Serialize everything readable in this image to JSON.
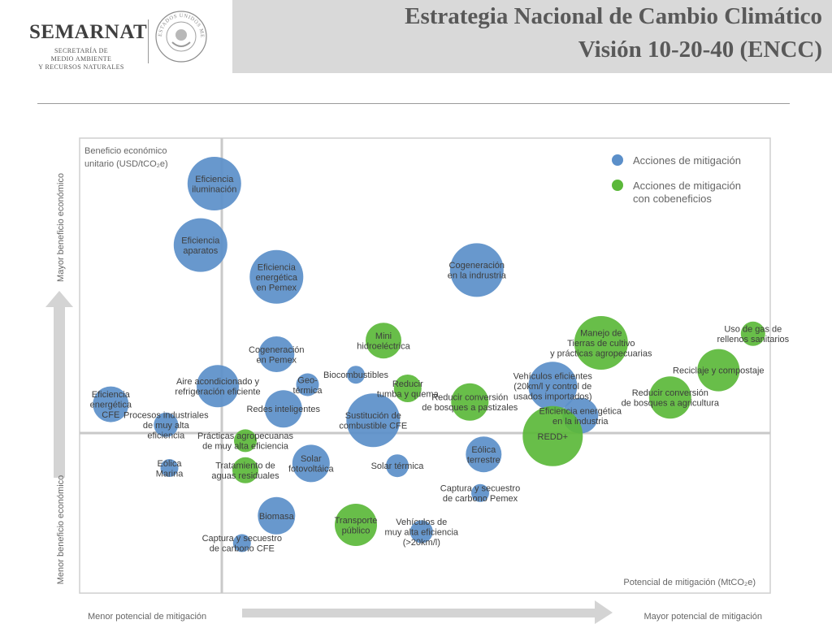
{
  "header": {
    "title_line1": "Estrategia Nacional de Cambio Climático",
    "title_line2": "Visión 10-20-40 (ENCC)",
    "logo_name": "SEMARNAT",
    "logo_sub1": "SECRETARÍA DE",
    "logo_sub2": "MEDIO AMBIENTE",
    "logo_sub3": "Y RECURSOS NATURALES",
    "seal_text": "ESTADOS UNIDOS MEXICANOS"
  },
  "chart_data": {
    "type": "bubble",
    "x_scale": [
      0,
      100
    ],
    "y_scale": [
      0,
      100
    ],
    "y_axis_label_top": [
      "Beneficio económico",
      "unitario (USD/tCO₂e)"
    ],
    "x_axis_label": "Potencial de mitigación (MtCO₂e)",
    "outer_y_top": "Mayor beneficio económico",
    "outer_y_bottom": "Menor beneficio económico",
    "outer_x_left": "Menor potencial de mitigación",
    "outer_x_right": "Mayor potencial de mitigación",
    "legend": [
      {
        "name": "Acciones de mitigación",
        "lines": [
          "Acciones de mitigación"
        ],
        "color": "#5b8fc9"
      },
      {
        "name": "Acciones de mitigación con cobeneficios",
        "lines": [
          "Acciones de mitigación",
          "con cobeneficios"
        ],
        "color": "#5bb83a"
      }
    ],
    "colors": {
      "mitigation": "#5b8fc9",
      "cobenefit": "#5bb83a",
      "frame": "#cfcfcf",
      "arrow": "#d4d4d4"
    },
    "points": [
      {
        "lines": [
          "Eficiencia",
          "iluminación"
        ],
        "x": 19.5,
        "y": 90,
        "r": 33,
        "group": "mitigation"
      },
      {
        "lines": [
          "Eficiencia",
          "aparatos"
        ],
        "x": 17.5,
        "y": 76.5,
        "r": 33,
        "group": "mitigation"
      },
      {
        "lines": [
          "Eficiencia",
          "energética",
          "en Pemex"
        ],
        "x": 28.5,
        "y": 69.5,
        "r": 33,
        "group": "mitigation"
      },
      {
        "lines": [
          "Cogeneración",
          "en la indrustria"
        ],
        "x": 57.5,
        "y": 71,
        "r": 33,
        "group": "mitigation"
      },
      {
        "lines": [
          "Cogeneración",
          "en Pemex"
        ],
        "x": 28.5,
        "y": 52.5,
        "r": 22,
        "group": "mitigation"
      },
      {
        "lines": [
          "Aire acondicionado y",
          "refrigeración eficiente"
        ],
        "x": 20,
        "y": 45.5,
        "r": 26,
        "group": "mitigation"
      },
      {
        "lines": [
          "Geo-",
          "térmica"
        ],
        "x": 33,
        "y": 45.8,
        "r": 14,
        "group": "mitigation"
      },
      {
        "lines": [
          "Biocombustibles"
        ],
        "x": 40,
        "y": 48,
        "r": 11,
        "group": "mitigation"
      },
      {
        "lines": [
          "Redes inteligentes"
        ],
        "x": 29.5,
        "y": 40.5,
        "r": 23,
        "group": "mitigation"
      },
      {
        "lines": [
          "Eficiencia",
          "energética",
          "CFE"
        ],
        "x": 4.5,
        "y": 41.5,
        "r": 22,
        "group": "mitigation"
      },
      {
        "lines": [
          "Procesos industriales",
          "de muy alta",
          "eficiencia"
        ],
        "x": 12.5,
        "y": 37,
        "r": 15,
        "group": "mitigation"
      },
      {
        "lines": [
          "Sustitución de",
          "combustible CFE"
        ],
        "x": 42.5,
        "y": 38,
        "r": 33,
        "group": "mitigation"
      },
      {
        "lines": [
          "Vehículos eficientes",
          "(20km/l  y control de",
          "usados importados)"
        ],
        "x": 68.5,
        "y": 45.5,
        "r": 30,
        "group": "mitigation"
      },
      {
        "lines": [
          "Eficiencia energética",
          "en la industria"
        ],
        "x": 72.5,
        "y": 39,
        "r": 22,
        "group": "mitigation"
      },
      {
        "lines": [
          "Eólica",
          "terrestre"
        ],
        "x": 58.5,
        "y": 30.5,
        "r": 22,
        "group": "mitigation"
      },
      {
        "lines": [
          "Eólica",
          "Marina"
        ],
        "x": 13,
        "y": 27.5,
        "r": 11,
        "group": "mitigation"
      },
      {
        "lines": [
          "Solar",
          "fotovoltáica"
        ],
        "x": 33.5,
        "y": 28.5,
        "r": 23,
        "group": "mitigation"
      },
      {
        "lines": [
          "Solar térmica"
        ],
        "x": 46,
        "y": 28,
        "r": 14,
        "group": "mitigation"
      },
      {
        "lines": [
          "Biomasa"
        ],
        "x": 28.5,
        "y": 17,
        "r": 23,
        "group": "mitigation"
      },
      {
        "lines": [
          "Captura y secuestro",
          "de carbono Pemex"
        ],
        "x": 58,
        "y": 22,
        "r": 11,
        "group": "mitigation"
      },
      {
        "lines": [
          "Vehículos de",
          "muy alta eficiencia",
          "(>20km/l)"
        ],
        "x": 49.5,
        "y": 13.5,
        "r": 14,
        "group": "mitigation"
      },
      {
        "lines": [
          "Captura y secuestro",
          "de carbono CFE"
        ],
        "x": 23.5,
        "y": 11,
        "r": 11,
        "group": "mitigation"
      },
      {
        "lines": [
          "Mini",
          "hidroeléctrica"
        ],
        "x": 44,
        "y": 55.5,
        "r": 22,
        "group": "cobenefit"
      },
      {
        "lines": [
          "Manejo de",
          "Tierras de cultivo",
          "y prácticas agropecuarias"
        ],
        "x": 75.5,
        "y": 55,
        "r": 33,
        "group": "cobenefit"
      },
      {
        "lines": [
          "Uso de gas de",
          "rellenos sanitarios"
        ],
        "x": 97.5,
        "y": 57,
        "r": 15,
        "group": "cobenefit"
      },
      {
        "lines": [
          "Reciclaje y compostaje"
        ],
        "x": 92.5,
        "y": 49,
        "r": 26,
        "group": "cobenefit"
      },
      {
        "lines": [
          "Reducir",
          "tumba y quema"
        ],
        "x": 47.5,
        "y": 45,
        "r": 17,
        "group": "cobenefit"
      },
      {
        "lines": [
          "Reducir conversión",
          "de bosques a pastizales"
        ],
        "x": 56.5,
        "y": 42,
        "r": 23,
        "group": "cobenefit"
      },
      {
        "lines": [
          "Reducir conversión",
          "de bosques a  agricultura"
        ],
        "x": 85.5,
        "y": 43,
        "r": 26,
        "group": "cobenefit"
      },
      {
        "lines": [
          "REDD+"
        ],
        "x": 68.5,
        "y": 34.5,
        "r": 37,
        "group": "cobenefit"
      },
      {
        "lines": [
          "Prácticas agropecuanas",
          "de muy alta eficiencia"
        ],
        "x": 24,
        "y": 33.5,
        "r": 14,
        "group": "cobenefit"
      },
      {
        "lines": [
          "Tratamiento de",
          "aguas residuales"
        ],
        "x": 24,
        "y": 27,
        "r": 16,
        "group": "cobenefit"
      },
      {
        "lines": [
          "Transporte",
          "público"
        ],
        "x": 40,
        "y": 15,
        "r": 26,
        "group": "cobenefit"
      }
    ]
  }
}
